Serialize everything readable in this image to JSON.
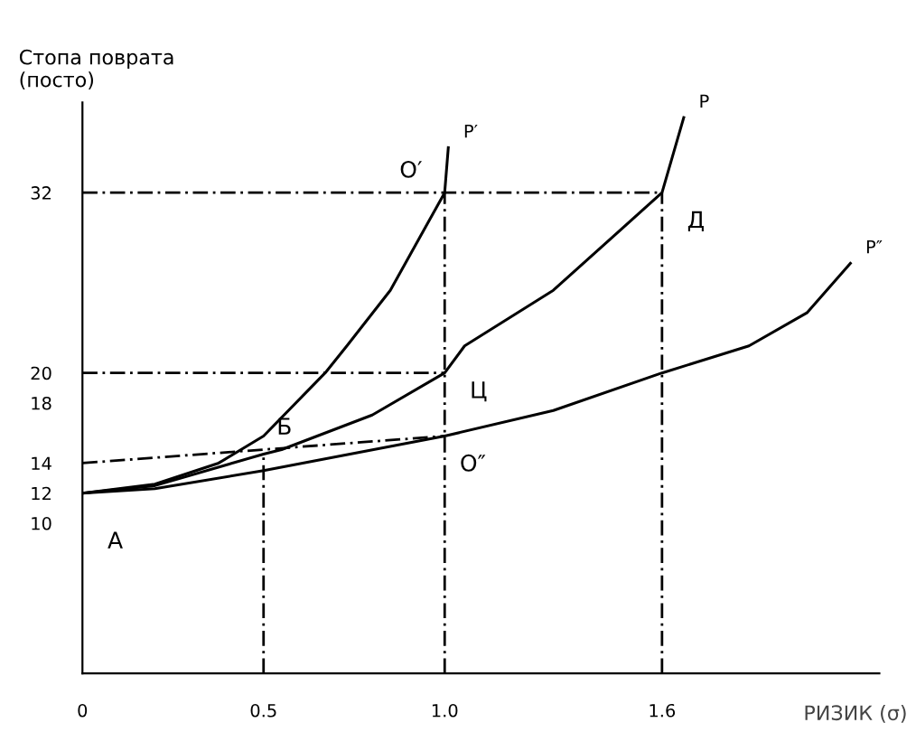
{
  "chart_data": {
    "type": "line",
    "xlabel": "РИЗИК (σ)",
    "ylabel": "Стопа поврата\n(посто)",
    "xlim": [
      0,
      2.2
    ],
    "ylim": [
      0,
      38
    ],
    "xticks": [
      0,
      0.5,
      {
        "value": 1.0,
        "label": "1.0"
      },
      1.6
    ],
    "yticks": [
      10,
      12,
      14,
      18,
      20,
      32
    ],
    "grid": false,
    "legend": false,
    "marker": "none",
    "series": [
      {
        "name": "P′",
        "color": "#000000",
        "x": [
          0,
          0.2,
          0.376,
          0.5,
          0.67,
          0.73,
          0.85,
          1.0,
          1.01
        ],
        "values": [
          12,
          12.6,
          14,
          15.8,
          20,
          21.8,
          25.5,
          32,
          35
        ]
      },
      {
        "name": "P",
        "color": "#000000",
        "x": [
          0,
          0.2,
          0.5,
          0.55,
          0.8,
          1.0,
          1.055,
          1.3,
          1.6,
          1.66
        ],
        "values": [
          12,
          12.5,
          14.6,
          14.9,
          17.2,
          20,
          21.8,
          25.5,
          32,
          37
        ]
      },
      {
        "name": "P″",
        "color": "#000000",
        "x": [
          0,
          0.2,
          0.5,
          1.0,
          1.3,
          1.6,
          1.84,
          2.0,
          2.12
        ],
        "values": [
          12,
          12.3,
          13.5,
          15.8,
          17.5,
          20,
          21.8,
          24,
          27.3
        ]
      },
      {
        "color": "#000000",
        "line_style": "dashed",
        "x": [
          0,
          1.6
        ],
        "values": [
          32,
          32
        ]
      },
      {
        "color": "#000000",
        "line_style": "dashed",
        "x": [
          0,
          1.0
        ],
        "values": [
          20,
          20
        ]
      },
      {
        "color": "#000000",
        "line_style": "dashed",
        "x": [
          0,
          1.0
        ],
        "values": [
          14,
          15.8
        ]
      },
      {
        "color": "#000000",
        "line_style": "dashed",
        "x": [
          0.5,
          0.5
        ],
        "values": [
          0,
          14.6
        ]
      },
      {
        "color": "#000000",
        "line_style": "dashed",
        "x": [
          1.0,
          1.0
        ],
        "values": [
          0,
          32
        ]
      },
      {
        "color": "#000000",
        "line_style": "dashed",
        "x": [
          1.6,
          1.6
        ],
        "values": [
          0,
          32
        ]
      }
    ],
    "annotations": [
      {
        "text": "А",
        "x": 0,
        "y": 12
      },
      {
        "text": "Б",
        "x": 0.55,
        "y": 14.9
      },
      {
        "text": "Ц",
        "x": 1.0,
        "y": 20
      },
      {
        "text": "Д",
        "x": 1.6,
        "y": 32
      },
      {
        "text": "O′",
        "x": 1.0,
        "y": 32
      },
      {
        "text": "O″",
        "x": 1.0,
        "y": 15.8
      }
    ]
  }
}
